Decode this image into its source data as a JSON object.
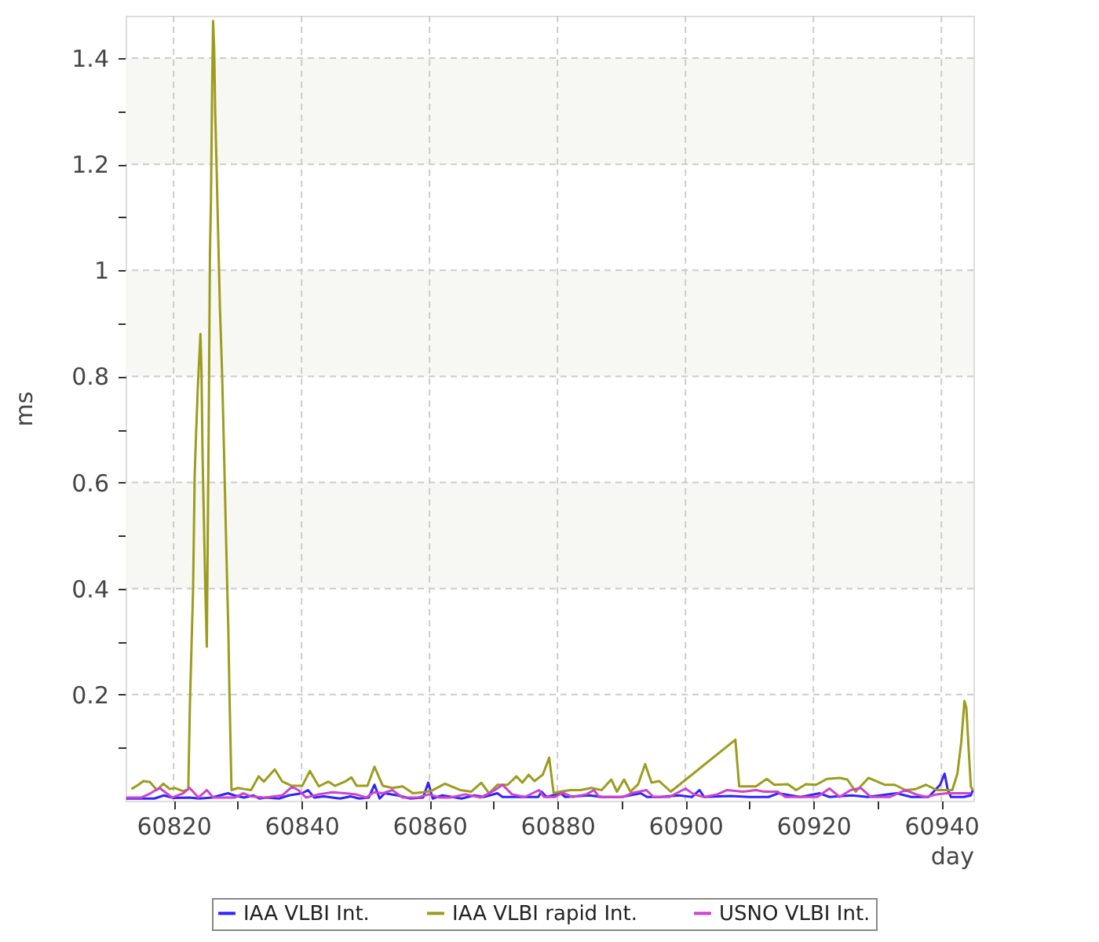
{
  "chart_data": {
    "type": "line",
    "xlabel": "day",
    "ylabel": "ms",
    "xlim": [
      60812.5,
      60945
    ],
    "ylim": [
      0,
      1.48
    ],
    "xticks": [
      60820,
      {
        "value": 60830,
        "label": null
      },
      60840,
      {
        "value": 60850,
        "label": null
      },
      60860,
      {
        "value": 60870,
        "label": null
      },
      60880,
      {
        "value": 60890,
        "label": null
      },
      60900,
      {
        "value": 60910,
        "label": null
      },
      60920,
      {
        "value": 60930,
        "label": null
      },
      60940
    ],
    "yticks": [
      {
        "value": 0.1,
        "label": null
      },
      0.2,
      {
        "value": 0.3,
        "label": null
      },
      0.4,
      {
        "value": 0.5,
        "label": null
      },
      0.6,
      {
        "value": 0.7,
        "label": null
      },
      0.8,
      {
        "value": 0.9,
        "label": null
      },
      1,
      {
        "value": 1.1,
        "label": null
      },
      1.2,
      {
        "value": 1.3,
        "label": null
      },
      1.4
    ],
    "grid": true,
    "legend": "bottom",
    "bands": [
      {
        "axis": "y",
        "from": 0.4,
        "to": 0.6,
        "color": "#f7f7f3"
      },
      {
        "axis": "y",
        "from": 0.8,
        "to": 1.0,
        "color": "#f7f7f3"
      },
      {
        "axis": "y",
        "from": 1.2,
        "to": 1.4,
        "color": "#f7f7f3"
      }
    ],
    "series": [
      {
        "name": "IAA VLBI Int.",
        "color": "#3322ff",
        "x": [
          60812.6,
          60815,
          60817,
          60818.5,
          60820,
          60822.5,
          60824,
          60826,
          60828.5,
          60829.5,
          60831,
          60832.5,
          60833.4,
          60834.5,
          60836.5,
          60838,
          60840.1,
          60841,
          60842,
          60843.5,
          60846,
          60847.7,
          60849,
          60850.5,
          60851.4,
          60852.2,
          60853,
          60855,
          60857,
          60859,
          60859.8,
          60860.5,
          60862,
          60865,
          60867,
          60868.5,
          60870.6,
          60871.4,
          60873,
          60877,
          60877.5,
          60878.3,
          60880.5,
          60881.2,
          60885,
          60887,
          60890,
          60893,
          60894,
          60896,
          60899,
          60901,
          60902.2,
          60902.9,
          60907,
          60910,
          60913,
          60914.5,
          60918,
          60921,
          60922.5,
          60926,
          60928.5,
          60933,
          60935.3,
          60938,
          60939.8,
          60940.5,
          60941,
          60941.5,
          60943.5,
          60944.6,
          60944.9
        ],
        "values": [
          0.004,
          0.004,
          0.004,
          0.01,
          0.005,
          0.006,
          0.004,
          0.006,
          0.014,
          0.01,
          0.006,
          0.01,
          0.004,
          0.006,
          0.004,
          0.01,
          0.014,
          0.02,
          0.006,
          0.008,
          0.004,
          0.008,
          0.004,
          0.006,
          0.03,
          0.004,
          0.014,
          0.01,
          0.004,
          0.006,
          0.034,
          0.004,
          0.01,
          0.004,
          0.01,
          0.007,
          0.014,
          0.007,
          0.007,
          0.007,
          0.017,
          0.007,
          0.014,
          0.007,
          0.01,
          0.007,
          0.007,
          0.014,
          0.007,
          0.007,
          0.01,
          0.007,
          0.02,
          0.007,
          0.009,
          0.007,
          0.007,
          0.014,
          0.007,
          0.014,
          0.007,
          0.01,
          0.007,
          0.014,
          0.007,
          0.007,
          0.03,
          0.051,
          0.02,
          0.007,
          0.007,
          0.01,
          0.02
        ]
      },
      {
        "name": "IAA VLBI rapid Int.",
        "color": "#9c9c1e",
        "x": [
          60813.4,
          60814.5,
          60815.3,
          60816.3,
          60817.4,
          60818.4,
          60819.4,
          60820.2,
          60821.5,
          60822.3,
          60822.55,
          60822.8,
          60823.05,
          60823.29,
          60823.54,
          60823.79,
          60823.95,
          60824.2,
          60824.36,
          60824.53,
          60824.77,
          60824.94,
          60825.19,
          60825.35,
          60825.51,
          60825.68,
          60825.84,
          60826.01,
          60826.17,
          60826.34,
          60826.5,
          60826.75,
          60827.0,
          60827.24,
          60827.57,
          60827.82,
          60828.07,
          60828.31,
          60828.56,
          60828.72,
          60829.05,
          60830.1,
          60831,
          60832.1,
          60833.3,
          60834.1,
          60835.8,
          60837,
          60838.5,
          60840.1,
          60841.3,
          60842.7,
          60844.2,
          60845.2,
          60846.8,
          60847.8,
          60848.6,
          60850.3,
          60851.4,
          60852.7,
          60854.2,
          60855.8,
          60857.4,
          60859,
          60860.2,
          60862.4,
          60864.8,
          60866.5,
          60868.1,
          60869.3,
          60870.6,
          60872.2,
          60873.6,
          60874.5,
          60875.5,
          60876.4,
          60877.7,
          60878.7,
          60879.4,
          60880.4,
          60882,
          60883.6,
          60885.3,
          60886.9,
          60888.4,
          60889.3,
          60890.4,
          60891.4,
          60892.6,
          60893.7,
          60894.7,
          60895.9,
          60897.7,
          60907.8,
          60908.4,
          60911,
          60912.7,
          60913.9,
          60916,
          60917.3,
          60918.8,
          60920.4,
          60922.1,
          60924.1,
          60925.3,
          60926.6,
          60928.6,
          60931.1,
          60932.7,
          60934.4,
          60936,
          60937.6,
          60939.3,
          60941.7,
          60942.5,
          60943.1,
          60943.6,
          60943.9,
          60944.2,
          60944.6,
          60944.9
        ],
        "values": [
          0.022,
          0.03,
          0.037,
          0.035,
          0.02,
          0.032,
          0.022,
          0.024,
          0.018,
          0.022,
          0.18,
          0.29,
          0.4,
          0.61,
          0.7,
          0.78,
          0.82,
          0.88,
          0.81,
          0.65,
          0.51,
          0.41,
          0.29,
          0.51,
          0.74,
          1.03,
          1.13,
          1.33,
          1.47,
          1.42,
          1.3,
          1.18,
          1.05,
          0.93,
          0.81,
          0.69,
          0.56,
          0.44,
          0.32,
          0.21,
          0.02,
          0.024,
          0.022,
          0.02,
          0.046,
          0.036,
          0.059,
          0.036,
          0.028,
          0.028,
          0.056,
          0.027,
          0.036,
          0.028,
          0.036,
          0.044,
          0.028,
          0.028,
          0.064,
          0.028,
          0.024,
          0.027,
          0.014,
          0.016,
          0.018,
          0.032,
          0.02,
          0.017,
          0.034,
          0.014,
          0.03,
          0.03,
          0.046,
          0.034,
          0.049,
          0.037,
          0.049,
          0.081,
          0.014,
          0.017,
          0.02,
          0.02,
          0.024,
          0.02,
          0.04,
          0.017,
          0.04,
          0.017,
          0.031,
          0.069,
          0.034,
          0.037,
          0.017,
          0.115,
          0.027,
          0.027,
          0.041,
          0.03,
          0.031,
          0.02,
          0.031,
          0.03,
          0.041,
          0.043,
          0.04,
          0.017,
          0.043,
          0.03,
          0.03,
          0.02,
          0.022,
          0.03,
          0.02,
          0.02,
          0.051,
          0.11,
          0.188,
          0.175,
          0.11,
          0.027,
          0.02
        ]
      },
      {
        "name": "USNO VLBI Int.",
        "color": "#cc44cc",
        "x": [
          60812.6,
          60815,
          60816.4,
          60817.8,
          60819.8,
          60821.5,
          60822.5,
          60823.9,
          60825.2,
          60826.2,
          60829.6,
          60830.9,
          60832.1,
          60834.2,
          60837,
          60838.5,
          60839.5,
          60840.7,
          60842.7,
          60844.8,
          60846.8,
          60848.5,
          60850.1,
          60851.3,
          60852.7,
          60854.2,
          60855.8,
          60858.2,
          60859.9,
          60861.5,
          60863.2,
          60865.6,
          60868,
          60869,
          60870.2,
          60871.4,
          60872.9,
          60874.9,
          60877.1,
          60877.9,
          60879.6,
          60880.8,
          60882.4,
          60884.5,
          60885.7,
          60886.5,
          60888.6,
          60890.2,
          60891.8,
          60893.9,
          60895,
          60897.5,
          60900,
          60901.3,
          60902.9,
          60905,
          60906.5,
          60909,
          60911,
          60912.3,
          60914.4,
          60915.6,
          60918.1,
          60920.6,
          60922.5,
          60924.1,
          60925.8,
          60927.4,
          60929,
          60931.9,
          60934.4,
          60936,
          60937.6,
          60939.3,
          60940.9,
          60942.5,
          60944.6
        ],
        "values": [
          0.006,
          0.006,
          0.014,
          0.024,
          0.006,
          0.014,
          0.024,
          0.006,
          0.02,
          0.006,
          0.006,
          0.014,
          0.008,
          0.006,
          0.01,
          0.026,
          0.02,
          0.006,
          0.012,
          0.016,
          0.014,
          0.012,
          0.006,
          0.016,
          0.014,
          0.02,
          0.006,
          0.006,
          0.012,
          0.006,
          0.006,
          0.012,
          0.006,
          0.012,
          0.02,
          0.03,
          0.012,
          0.007,
          0.02,
          0.007,
          0.007,
          0.015,
          0.007,
          0.012,
          0.02,
          0.007,
          0.007,
          0.007,
          0.015,
          0.02,
          0.007,
          0.007,
          0.023,
          0.012,
          0.007,
          0.012,
          0.02,
          0.017,
          0.02,
          0.017,
          0.017,
          0.007,
          0.007,
          0.007,
          0.023,
          0.007,
          0.02,
          0.024,
          0.007,
          0.007,
          0.02,
          0.012,
          0.007,
          0.012,
          0.014,
          0.014,
          0.014
        ]
      }
    ]
  }
}
